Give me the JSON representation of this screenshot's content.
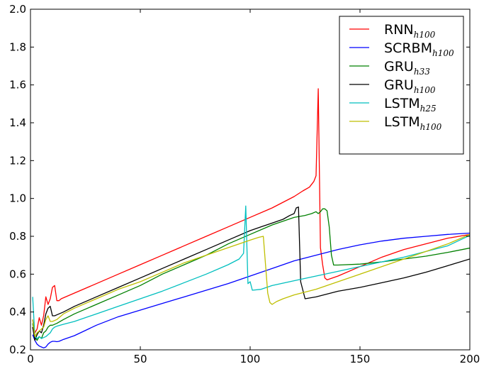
{
  "chart_data": {
    "type": "line",
    "title": "",
    "xlabel": "",
    "ylabel": "",
    "xlim": [
      0,
      200
    ],
    "ylim": [
      0.2,
      2.0
    ],
    "xticks": [
      0,
      50,
      100,
      150,
      200
    ],
    "xtick_labels": [
      "0",
      "50",
      "100",
      "150",
      "200"
    ],
    "yticks": [
      0.2,
      0.4,
      0.6,
      0.8,
      1.0,
      1.2,
      1.4,
      1.6,
      1.8,
      2.0
    ],
    "ytick_labels": [
      "0.2",
      "0.4",
      "0.6",
      "0.8",
      "1.0",
      "1.2",
      "1.4",
      "1.6",
      "1.8",
      "2.0"
    ],
    "grid": false,
    "legend_position": "top-right",
    "series": [
      {
        "name": "RNN",
        "subscript": "h100",
        "color": "#ff0000",
        "points": [
          [
            1,
            0.36
          ],
          [
            2,
            0.29
          ],
          [
            3,
            0.31
          ],
          [
            4,
            0.37
          ],
          [
            5,
            0.33
          ],
          [
            6,
            0.38
          ],
          [
            7,
            0.48
          ],
          [
            8,
            0.44
          ],
          [
            9,
            0.47
          ],
          [
            10,
            0.53
          ],
          [
            11,
            0.54
          ],
          [
            12,
            0.46
          ],
          [
            13,
            0.46
          ],
          [
            14,
            0.47
          ],
          [
            20,
            0.5
          ],
          [
            30,
            0.55
          ],
          [
            40,
            0.6
          ],
          [
            50,
            0.65
          ],
          [
            60,
            0.7
          ],
          [
            70,
            0.75
          ],
          [
            80,
            0.8
          ],
          [
            90,
            0.85
          ],
          [
            100,
            0.9
          ],
          [
            110,
            0.95
          ],
          [
            115,
            0.98
          ],
          [
            120,
            1.01
          ],
          [
            124,
            1.04
          ],
          [
            127,
            1.06
          ],
          [
            129,
            1.09
          ],
          [
            130,
            1.12
          ],
          [
            131,
            1.58
          ],
          [
            132,
            0.74
          ],
          [
            133,
            0.65
          ],
          [
            134,
            0.58
          ],
          [
            135,
            0.57
          ],
          [
            140,
            0.59
          ],
          [
            150,
            0.64
          ],
          [
            160,
            0.69
          ],
          [
            170,
            0.73
          ],
          [
            180,
            0.76
          ],
          [
            190,
            0.79
          ],
          [
            200,
            0.81
          ]
        ]
      },
      {
        "name": "SCRBM",
        "subscript": "h100",
        "color": "#0000ff",
        "points": [
          [
            1,
            0.28
          ],
          [
            2,
            0.25
          ],
          [
            3,
            0.23
          ],
          [
            4,
            0.22
          ],
          [
            5,
            0.215
          ],
          [
            6,
            0.21
          ],
          [
            7,
            0.215
          ],
          [
            8,
            0.23
          ],
          [
            9,
            0.24
          ],
          [
            10,
            0.245
          ],
          [
            11,
            0.245
          ],
          [
            12,
            0.243
          ],
          [
            13,
            0.245
          ],
          [
            15,
            0.255
          ],
          [
            20,
            0.275
          ],
          [
            30,
            0.33
          ],
          [
            40,
            0.375
          ],
          [
            50,
            0.41
          ],
          [
            60,
            0.445
          ],
          [
            70,
            0.48
          ],
          [
            80,
            0.515
          ],
          [
            90,
            0.55
          ],
          [
            100,
            0.59
          ],
          [
            110,
            0.63
          ],
          [
            120,
            0.67
          ],
          [
            130,
            0.7
          ],
          [
            140,
            0.73
          ],
          [
            150,
            0.755
          ],
          [
            160,
            0.775
          ],
          [
            170,
            0.79
          ],
          [
            180,
            0.8
          ],
          [
            190,
            0.81
          ],
          [
            200,
            0.817
          ]
        ]
      },
      {
        "name": "GRU",
        "subscript": "h33",
        "color": "#008000",
        "points": [
          [
            1,
            0.34
          ],
          [
            2,
            0.27
          ],
          [
            3,
            0.25
          ],
          [
            4,
            0.27
          ],
          [
            5,
            0.26
          ],
          [
            6,
            0.29
          ],
          [
            7,
            0.3
          ],
          [
            8,
            0.32
          ],
          [
            9,
            0.33
          ],
          [
            10,
            0.33
          ],
          [
            12,
            0.34
          ],
          [
            15,
            0.36
          ],
          [
            20,
            0.39
          ],
          [
            30,
            0.44
          ],
          [
            40,
            0.49
          ],
          [
            50,
            0.54
          ],
          [
            60,
            0.6
          ],
          [
            70,
            0.65
          ],
          [
            80,
            0.7
          ],
          [
            90,
            0.76
          ],
          [
            100,
            0.81
          ],
          [
            110,
            0.86
          ],
          [
            120,
            0.9
          ],
          [
            125,
            0.91
          ],
          [
            128,
            0.92
          ],
          [
            130,
            0.93
          ],
          [
            131,
            0.92
          ],
          [
            132,
            0.93
          ],
          [
            133,
            0.945
          ],
          [
            134,
            0.945
          ],
          [
            135,
            0.935
          ],
          [
            136,
            0.85
          ],
          [
            137,
            0.7
          ],
          [
            138,
            0.648
          ],
          [
            140,
            0.648
          ],
          [
            150,
            0.653
          ],
          [
            160,
            0.665
          ],
          [
            170,
            0.68
          ],
          [
            180,
            0.695
          ],
          [
            190,
            0.715
          ],
          [
            200,
            0.738
          ]
        ]
      },
      {
        "name": "GRU",
        "subscript": "h100",
        "color": "#000000",
        "points": [
          [
            1,
            0.32
          ],
          [
            2,
            0.25
          ],
          [
            3,
            0.28
          ],
          [
            4,
            0.3
          ],
          [
            5,
            0.29
          ],
          [
            6,
            0.33
          ],
          [
            7,
            0.39
          ],
          [
            8,
            0.42
          ],
          [
            9,
            0.43
          ],
          [
            10,
            0.38
          ],
          [
            11,
            0.38
          ],
          [
            12,
            0.385
          ],
          [
            15,
            0.4
          ],
          [
            20,
            0.43
          ],
          [
            30,
            0.48
          ],
          [
            40,
            0.53
          ],
          [
            50,
            0.58
          ],
          [
            60,
            0.63
          ],
          [
            70,
            0.68
          ],
          [
            80,
            0.73
          ],
          [
            90,
            0.78
          ],
          [
            100,
            0.83
          ],
          [
            105,
            0.85
          ],
          [
            110,
            0.87
          ],
          [
            115,
            0.89
          ],
          [
            118,
            0.91
          ],
          [
            120,
            0.92
          ],
          [
            121,
            0.95
          ],
          [
            122,
            0.955
          ],
          [
            123,
            0.56
          ],
          [
            125,
            0.47
          ],
          [
            130,
            0.48
          ],
          [
            140,
            0.51
          ],
          [
            150,
            0.53
          ],
          [
            160,
            0.555
          ],
          [
            170,
            0.58
          ],
          [
            180,
            0.61
          ],
          [
            190,
            0.645
          ],
          [
            200,
            0.68
          ]
        ]
      },
      {
        "name": "LSTM",
        "subscript": "h25",
        "color": "#00bfbf",
        "points": [
          [
            1,
            0.48
          ],
          [
            2,
            0.27
          ],
          [
            3,
            0.26
          ],
          [
            4,
            0.27
          ],
          [
            5,
            0.26
          ],
          [
            6,
            0.265
          ],
          [
            7,
            0.27
          ],
          [
            8,
            0.28
          ],
          [
            9,
            0.29
          ],
          [
            10,
            0.31
          ],
          [
            11,
            0.32
          ],
          [
            12,
            0.325
          ],
          [
            15,
            0.335
          ],
          [
            20,
            0.35
          ],
          [
            30,
            0.39
          ],
          [
            40,
            0.43
          ],
          [
            50,
            0.47
          ],
          [
            60,
            0.51
          ],
          [
            70,
            0.555
          ],
          [
            80,
            0.6
          ],
          [
            90,
            0.65
          ],
          [
            95,
            0.68
          ],
          [
            97,
            0.71
          ],
          [
            98,
            0.96
          ],
          [
            99,
            0.55
          ],
          [
            100,
            0.56
          ],
          [
            101,
            0.515
          ],
          [
            105,
            0.52
          ],
          [
            110,
            0.54
          ],
          [
            120,
            0.565
          ],
          [
            130,
            0.59
          ],
          [
            140,
            0.615
          ],
          [
            150,
            0.64
          ],
          [
            160,
            0.665
          ],
          [
            170,
            0.69
          ],
          [
            180,
            0.72
          ],
          [
            190,
            0.75
          ],
          [
            200,
            0.805
          ]
        ]
      },
      {
        "name": "LSTM",
        "subscript": "h100",
        "color": "#bfbf00",
        "points": [
          [
            1,
            0.36
          ],
          [
            2,
            0.27
          ],
          [
            3,
            0.29
          ],
          [
            4,
            0.3
          ],
          [
            5,
            0.31
          ],
          [
            6,
            0.32
          ],
          [
            7,
            0.36
          ],
          [
            8,
            0.38
          ],
          [
            9,
            0.35
          ],
          [
            10,
            0.35
          ],
          [
            12,
            0.36
          ],
          [
            15,
            0.39
          ],
          [
            20,
            0.42
          ],
          [
            30,
            0.47
          ],
          [
            40,
            0.52
          ],
          [
            50,
            0.56
          ],
          [
            60,
            0.61
          ],
          [
            70,
            0.66
          ],
          [
            80,
            0.7
          ],
          [
            90,
            0.74
          ],
          [
            100,
            0.78
          ],
          [
            104,
            0.795
          ],
          [
            106,
            0.8
          ],
          [
            107,
            0.65
          ],
          [
            108,
            0.5
          ],
          [
            109,
            0.45
          ],
          [
            110,
            0.44
          ],
          [
            112,
            0.455
          ],
          [
            115,
            0.47
          ],
          [
            120,
            0.49
          ],
          [
            130,
            0.52
          ],
          [
            140,
            0.56
          ],
          [
            150,
            0.6
          ],
          [
            160,
            0.64
          ],
          [
            170,
            0.68
          ],
          [
            180,
            0.72
          ],
          [
            190,
            0.76
          ],
          [
            200,
            0.81
          ]
        ]
      }
    ]
  }
}
